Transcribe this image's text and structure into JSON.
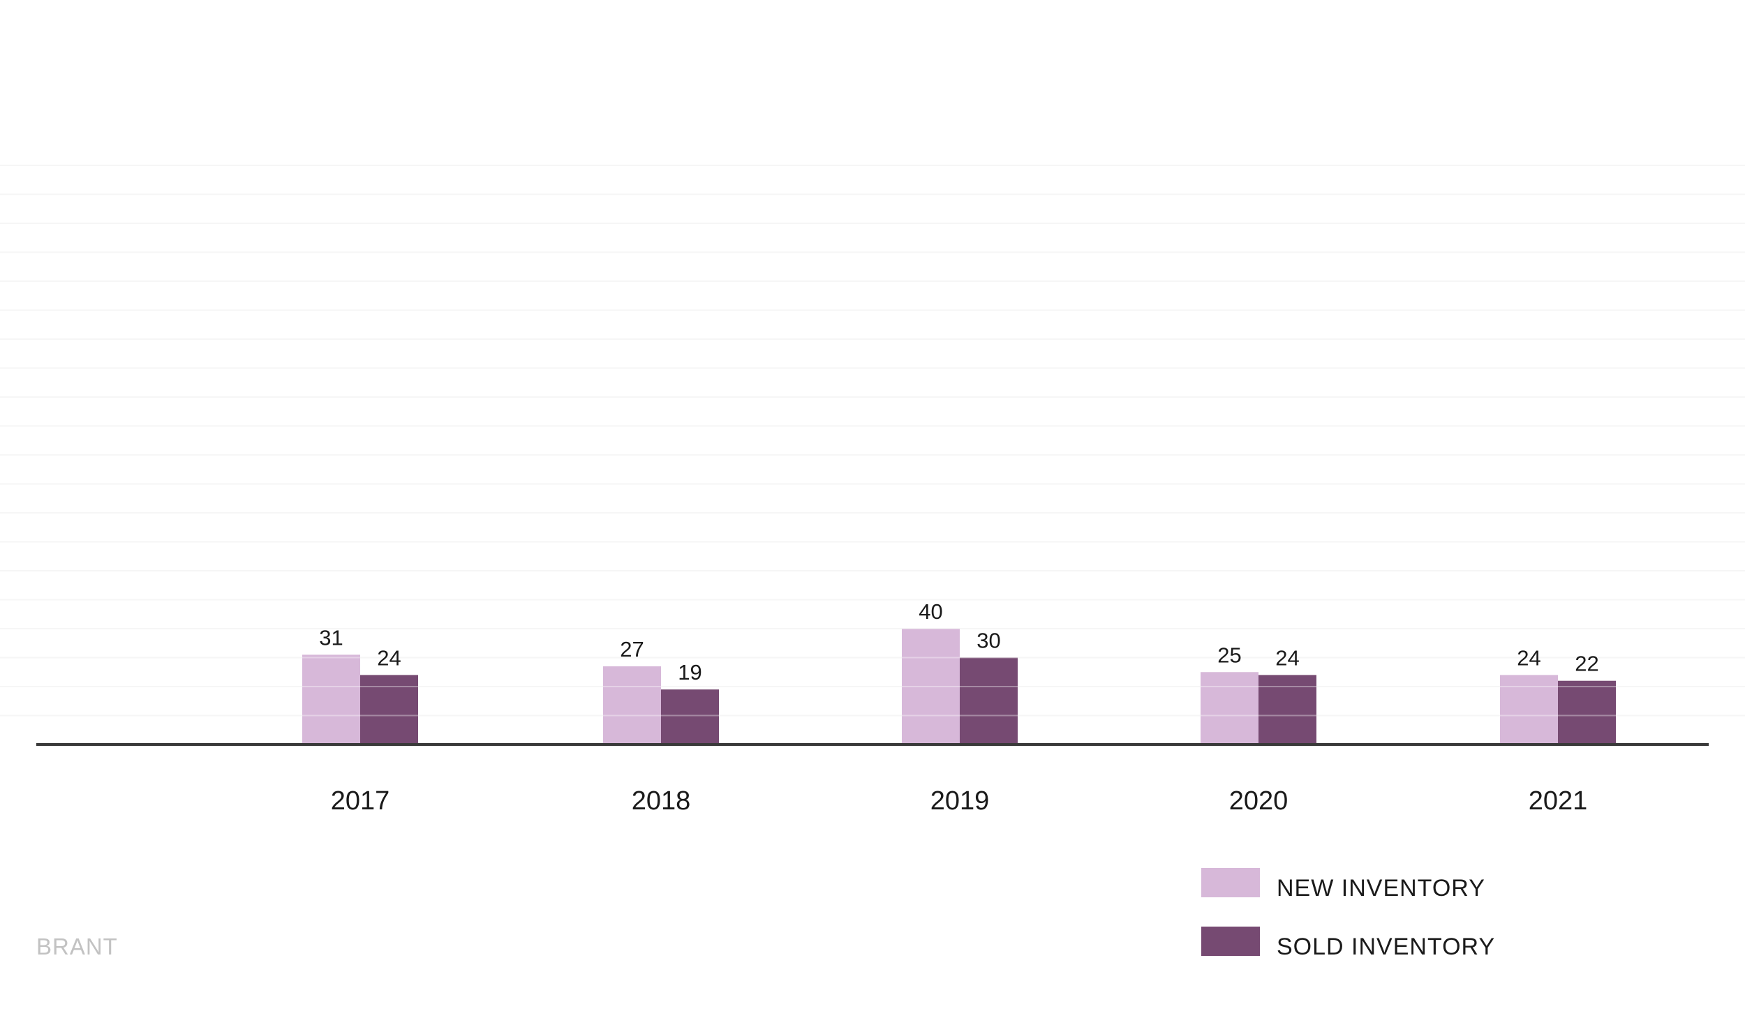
{
  "chart_data": {
    "type": "bar",
    "categories": [
      "2017",
      "2018",
      "2019",
      "2020",
      "2021"
    ],
    "series": [
      {
        "name": "NEW INVENTORY",
        "values": [
          31,
          27,
          40,
          25,
          24
        ],
        "color": "#d7b8d9"
      },
      {
        "name": "SOLD INVENTORY",
        "values": [
          24,
          19,
          30,
          24,
          22
        ],
        "color": "#764a72"
      }
    ],
    "title": "",
    "xlabel": "",
    "ylabel": "",
    "ylim": [
      0,
      200
    ],
    "grid": true,
    "legend_position": "bottom-right"
  },
  "footer": {
    "brand": "BRANT"
  },
  "colors": {
    "axis": "#3a3a3a",
    "grid": "#f2f2f2",
    "label": "#1a1a1a",
    "brand": "#c2c2c2"
  }
}
